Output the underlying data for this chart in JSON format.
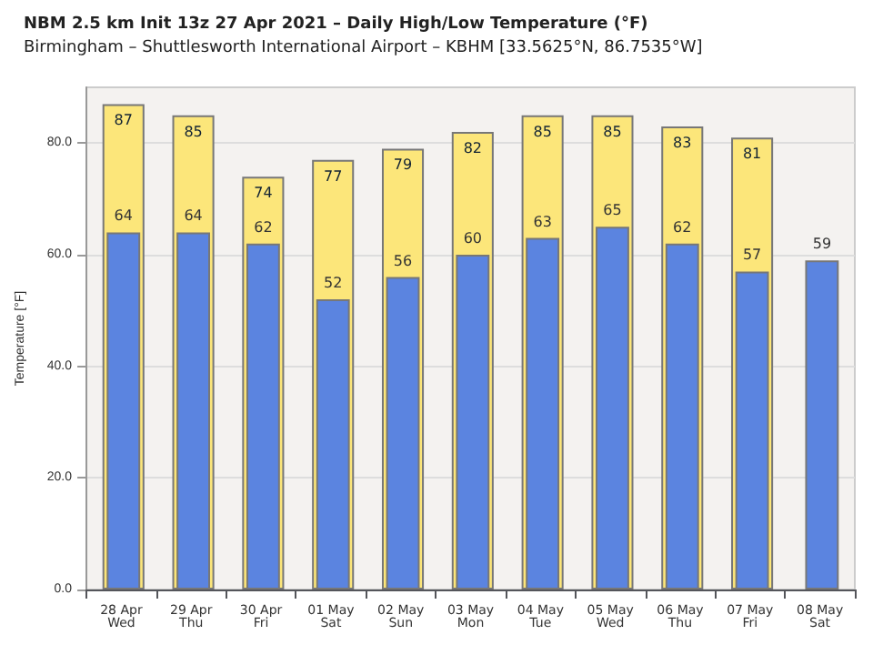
{
  "chart_data": {
    "type": "bar",
    "title": "NBM 2.5 km Init 13z 27 Apr 2021 – Daily High/Low Temperature (°F)",
    "subtitle": "Birmingham – Shuttlesworth International Airport – KBHM [33.5625°N, 86.7535°W]",
    "ylabel": "Temperature [°F]",
    "categories": [
      "28 Apr\nWed",
      "29 Apr\nThu",
      "30 Apr\nFri",
      "01 May\nSat",
      "02 May\nSun",
      "03 May\nMon",
      "04 May\nTue",
      "05 May\nWed",
      "06 May\nThu",
      "07 May\nFri",
      "08 May\nSat"
    ],
    "series": [
      {
        "color": "#fce67a",
        "values": [
          87,
          85,
          74,
          77,
          79,
          82,
          85,
          85,
          83,
          81,
          null
        ]
      },
      {
        "color": "#5b84e0",
        "values": [
          64,
          64,
          62,
          52,
          56,
          60,
          63,
          65,
          62,
          57,
          59
        ]
      }
    ],
    "ylim": [
      0,
      90
    ],
    "yticks": [
      {
        "value": 0,
        "label": "0.0"
      },
      {
        "value": 20,
        "label": "20.0"
      },
      {
        "value": 40,
        "label": "40.0"
      },
      {
        "value": 60,
        "label": "60.0"
      },
      {
        "value": 80,
        "label": "80.0"
      }
    ],
    "grid": "y",
    "data_labels": true
  }
}
